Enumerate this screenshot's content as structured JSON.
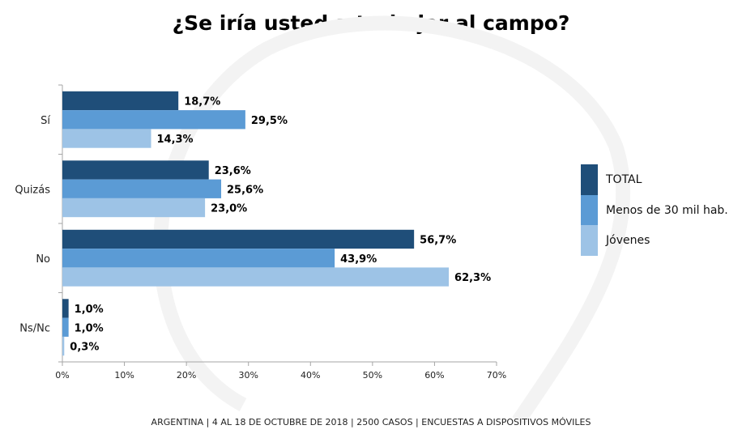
{
  "chart_data": {
    "type": "bar",
    "orientation": "horizontal",
    "title": "¿Se iría usted a trabajar al campo?",
    "categories": [
      "Sí",
      "Quizás",
      "No",
      "Ns/Nc"
    ],
    "series": [
      {
        "name": "TOTAL",
        "color": "#1f4e79",
        "values": [
          18.7,
          23.6,
          56.7,
          1.0
        ],
        "labels": [
          "18,7%",
          "23,6%",
          "56,7%",
          "1,0%"
        ]
      },
      {
        "name": "Menos de 30 mil hab.",
        "color": "#5b9bd5",
        "values": [
          29.5,
          25.6,
          43.9,
          1.0
        ],
        "labels": [
          "29,5%",
          "25,6%",
          "43,9%",
          "1,0%"
        ]
      },
      {
        "name": "Jóvenes",
        "color": "#9dc3e6",
        "values": [
          14.3,
          23.0,
          62.3,
          0.3
        ],
        "labels": [
          "14,3%",
          "23,0%",
          "62,3%",
          "0,3%"
        ]
      }
    ],
    "xlim": [
      0,
      70
    ],
    "xticks": [
      "0%",
      "10%",
      "20%",
      "30%",
      "40%",
      "50%",
      "60%",
      "70%"
    ],
    "grid": false,
    "legend": "right"
  },
  "footer": "ARGENTINA | 4 AL 18 DE OCTUBRE DE 2018 | 2500 CASOS | ENCUESTAS A DISPOSITIVOS MÓVILES"
}
